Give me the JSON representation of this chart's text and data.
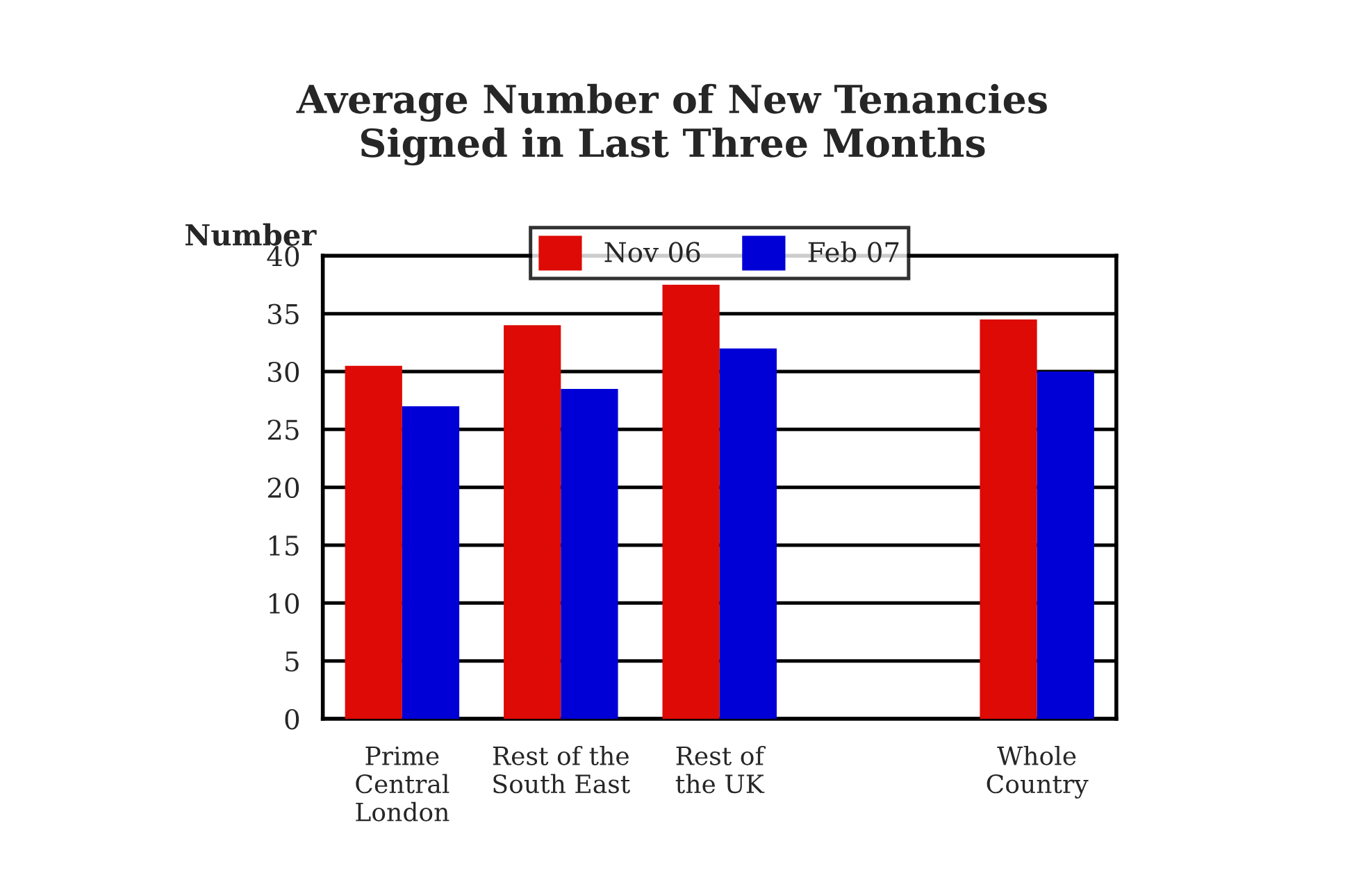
{
  "chart_data": {
    "type": "bar",
    "title": "Average Number of New Tenancies\nSigned in Last Three Months",
    "ylabel": "Number",
    "categories": [
      "Prime\nCentral\nLondon",
      "Rest of the\nSouth East",
      "Rest of\nthe UK",
      null,
      "Whole\nCountry"
    ],
    "series": [
      {
        "name": "Nov 06",
        "color": "#dd0a05",
        "values": [
          30.5,
          34,
          37.5,
          null,
          34.5
        ]
      },
      {
        "name": "Feb 07",
        "color": "#0000d6",
        "values": [
          27,
          28.5,
          32,
          null,
          30
        ]
      }
    ],
    "ylim": [
      0,
      40
    ],
    "yticks": [
      0,
      5,
      10,
      15,
      20,
      25,
      30,
      35,
      40
    ],
    "grid": "y",
    "legend": "top"
  }
}
